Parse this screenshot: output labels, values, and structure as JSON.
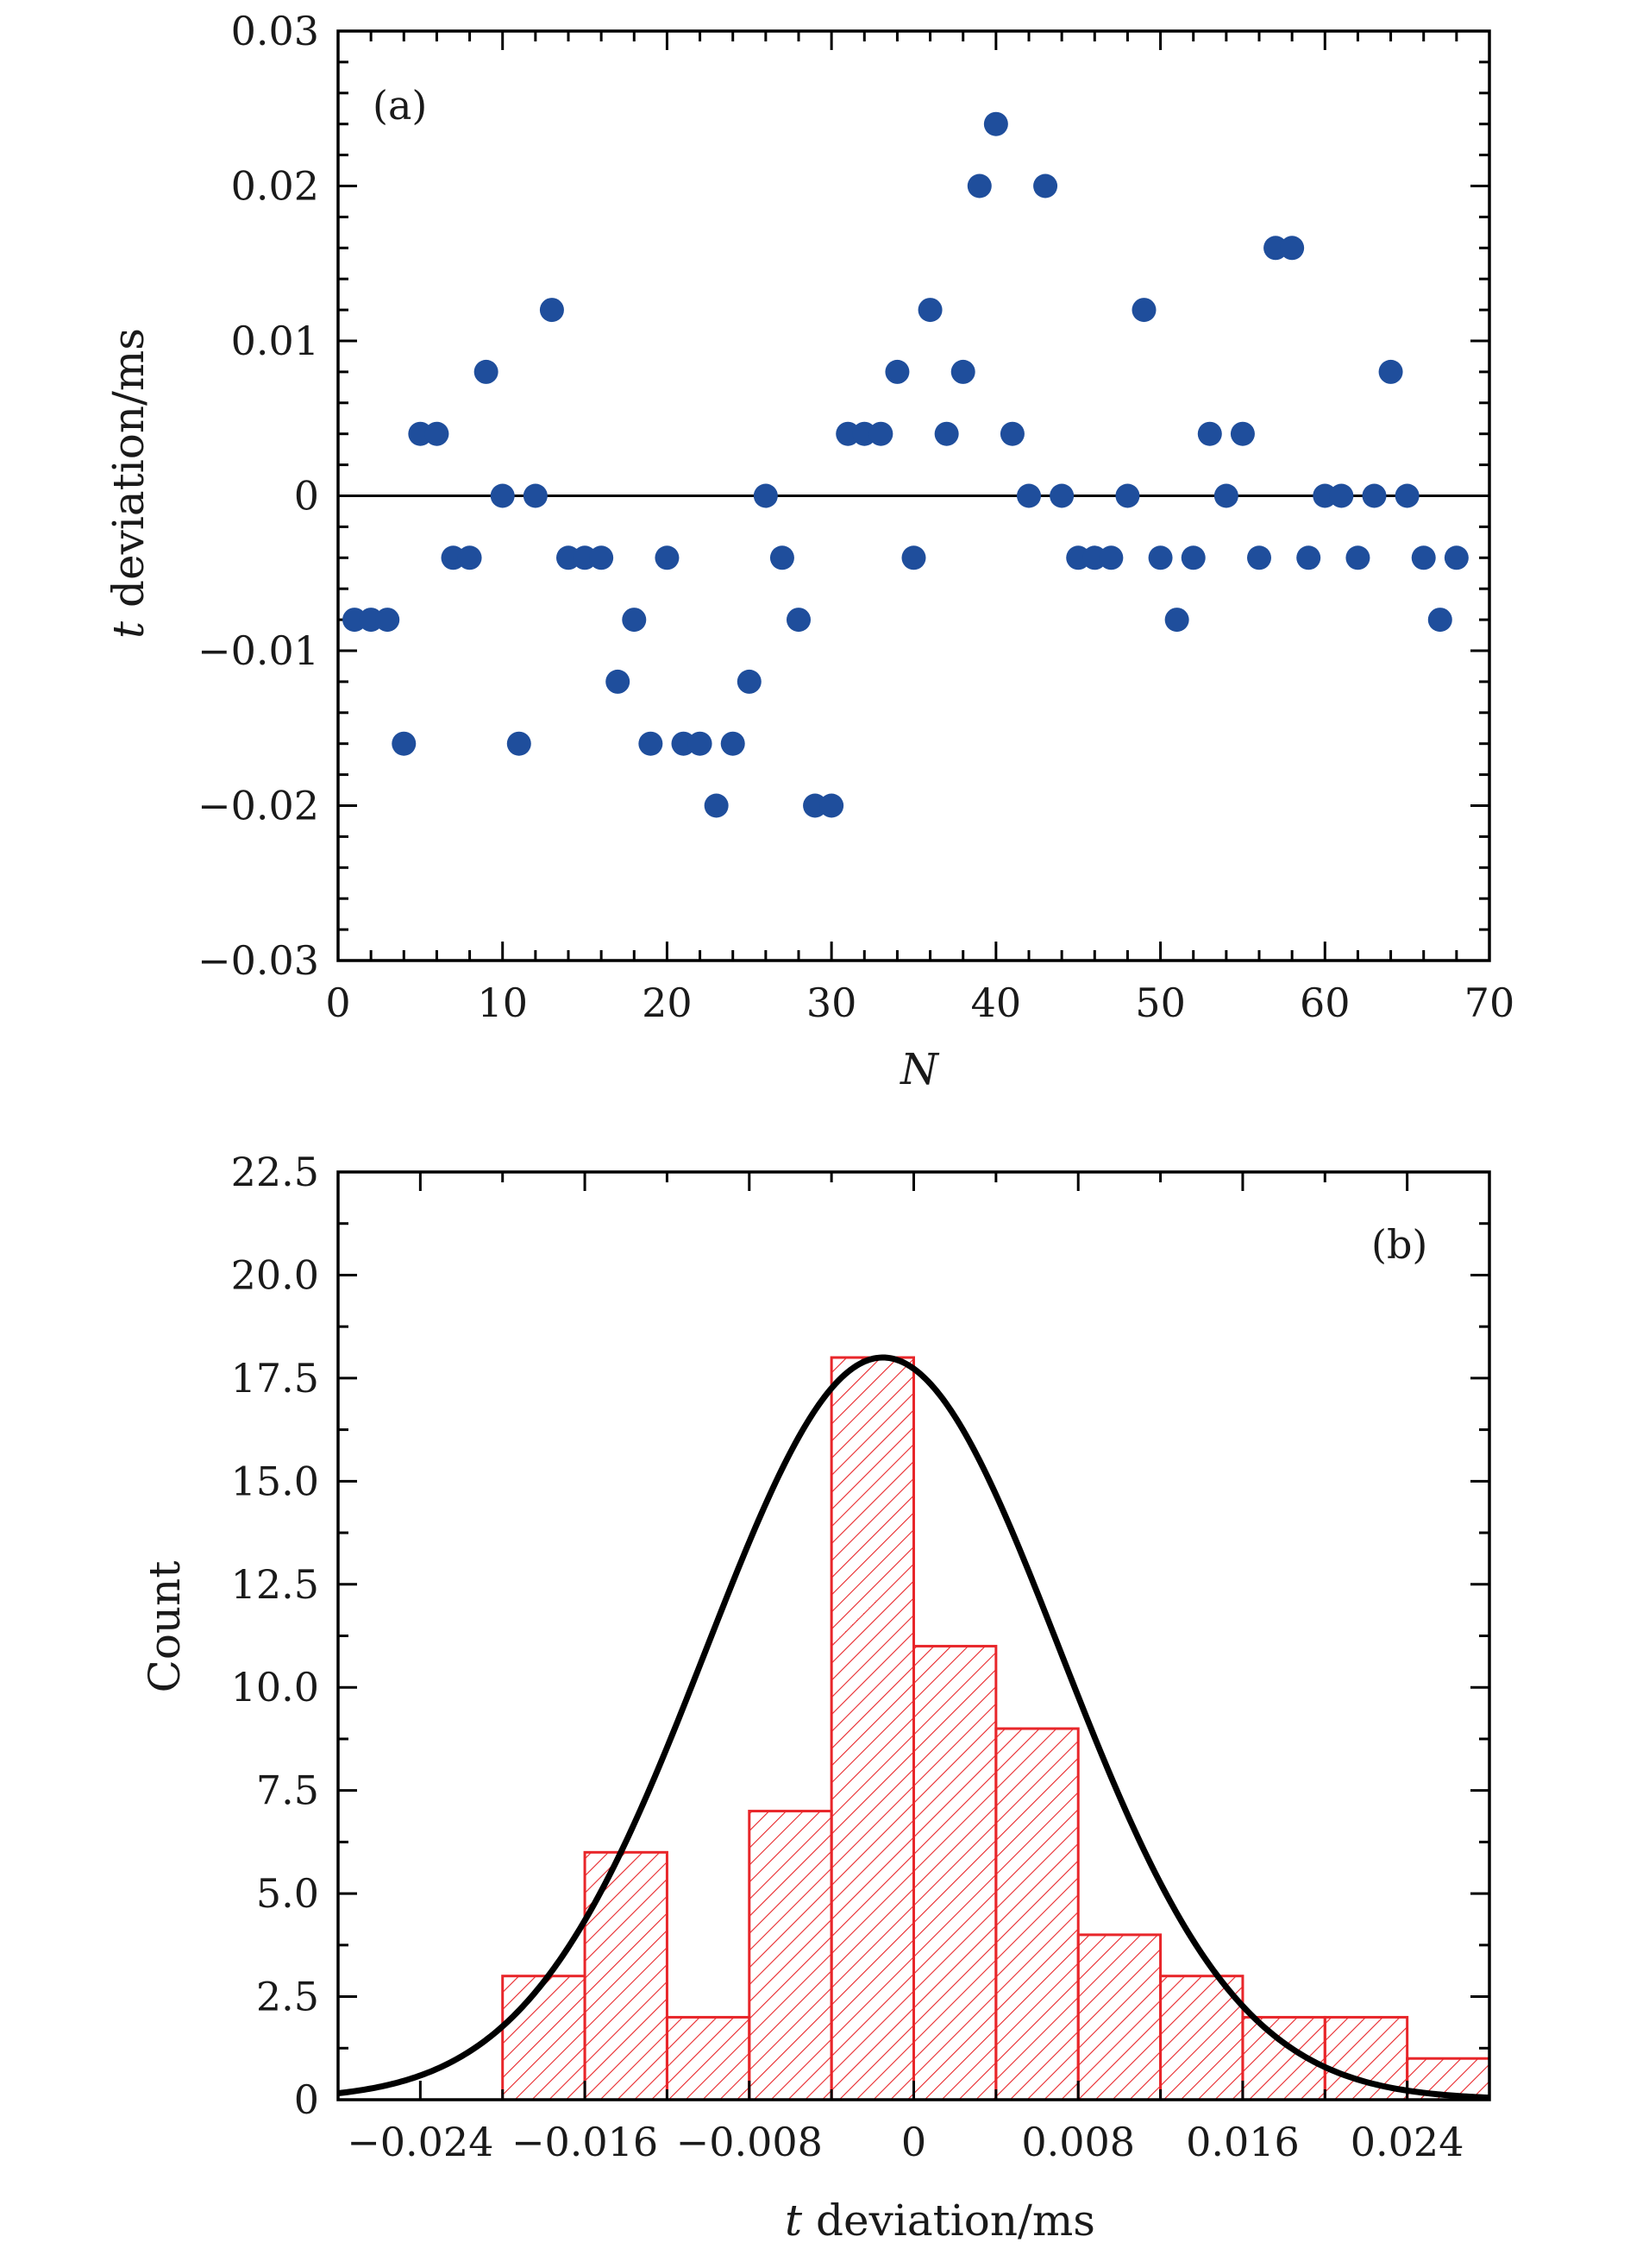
{
  "chart_data": [
    {
      "type": "scatter",
      "panel_label": "(a)",
      "xlabel": "N",
      "ylabel_italic": "t",
      "ylabel": " deviation/ms",
      "xlim": [
        0,
        70
      ],
      "ylim": [
        -0.03,
        0.03
      ],
      "xticks": [
        0,
        10,
        20,
        30,
        40,
        50,
        60,
        70
      ],
      "xtick_labels": [
        "0",
        "10",
        "20",
        "30",
        "40",
        "50",
        "60",
        "70"
      ],
      "yticks": [
        -0.03,
        -0.02,
        -0.01,
        0,
        0.01,
        0.02,
        0.03
      ],
      "ytick_labels": [
        "−0.03",
        "−0.02",
        "−0.01",
        "0",
        "0.01",
        "0.02",
        "0.03"
      ],
      "reference_line_y": 0,
      "marker_color": "#1f4e9c",
      "x": [
        1,
        2,
        3,
        4,
        5,
        6,
        7,
        8,
        9,
        10,
        11,
        12,
        13,
        14,
        15,
        16,
        17,
        18,
        19,
        20,
        21,
        22,
        23,
        24,
        25,
        26,
        27,
        28,
        29,
        30,
        31,
        32,
        33,
        34,
        35,
        36,
        37,
        38,
        39,
        40,
        41,
        42,
        43,
        44,
        45,
        46,
        47,
        48,
        49,
        50,
        51,
        52,
        53,
        54,
        55,
        56,
        57,
        58,
        59,
        60,
        61,
        62,
        63,
        64,
        65,
        66,
        67,
        68
      ],
      "y": [
        -0.008,
        -0.008,
        -0.008,
        -0.016,
        0.004,
        0.004,
        -0.004,
        -0.004,
        0.008,
        0,
        -0.016,
        0,
        0.012,
        -0.004,
        -0.004,
        -0.004,
        -0.012,
        -0.008,
        -0.016,
        -0.004,
        -0.016,
        -0.016,
        -0.02,
        -0.016,
        -0.012,
        0,
        -0.004,
        -0.008,
        -0.02,
        -0.02,
        0.004,
        0.004,
        0.004,
        0.008,
        -0.004,
        0.012,
        0.004,
        0.008,
        0.02,
        0.024,
        0.004,
        0,
        0.02,
        0,
        -0.004,
        -0.004,
        -0.004,
        0,
        0.012,
        -0.004,
        -0.008,
        -0.004,
        0.004,
        0,
        0.004,
        -0.004,
        0.016,
        0.016,
        -0.004,
        0,
        0,
        -0.004,
        0,
        0.008,
        0,
        -0.004,
        -0.008,
        -0.004
      ]
    },
    {
      "type": "bar",
      "subtype": "histogram_with_gaussian_fit",
      "panel_label": "(b)",
      "xlabel_italic": "t",
      "xlabel": " deviation/ms",
      "ylabel": "Count",
      "xlim": [
        -0.028,
        0.028
      ],
      "ylim": [
        0,
        22.5
      ],
      "xticks": [
        -0.024,
        -0.016,
        -0.008,
        0,
        0.008,
        0.016,
        0.024
      ],
      "xtick_labels": [
        "−0.024",
        "−0.016",
        "−0.008",
        "0",
        "0.008",
        "0.016",
        "0.024"
      ],
      "yticks": [
        0,
        2.5,
        5,
        7.5,
        10,
        12.5,
        15,
        17.5,
        20,
        22.5
      ],
      "ytick_labels": [
        "0",
        "2.5",
        "5.0",
        "7.5",
        "10.0",
        "12.5",
        "15.0",
        "17.5",
        "20.0",
        "22.5"
      ],
      "bar_color": "#e8262a",
      "fit_color": "#000000",
      "bin_edges": [
        -0.02,
        -0.016,
        -0.012,
        -0.008,
        -0.004,
        0,
        0.004,
        0.008,
        0.012,
        0.016,
        0.02,
        0.024,
        0.028
      ],
      "counts": [
        3,
        6,
        2,
        7,
        18,
        11,
        9,
        4,
        3,
        2,
        2,
        1
      ],
      "fit": {
        "amplitude": 18,
        "mean": -0.0015,
        "sigma": 0.0086
      }
    }
  ]
}
